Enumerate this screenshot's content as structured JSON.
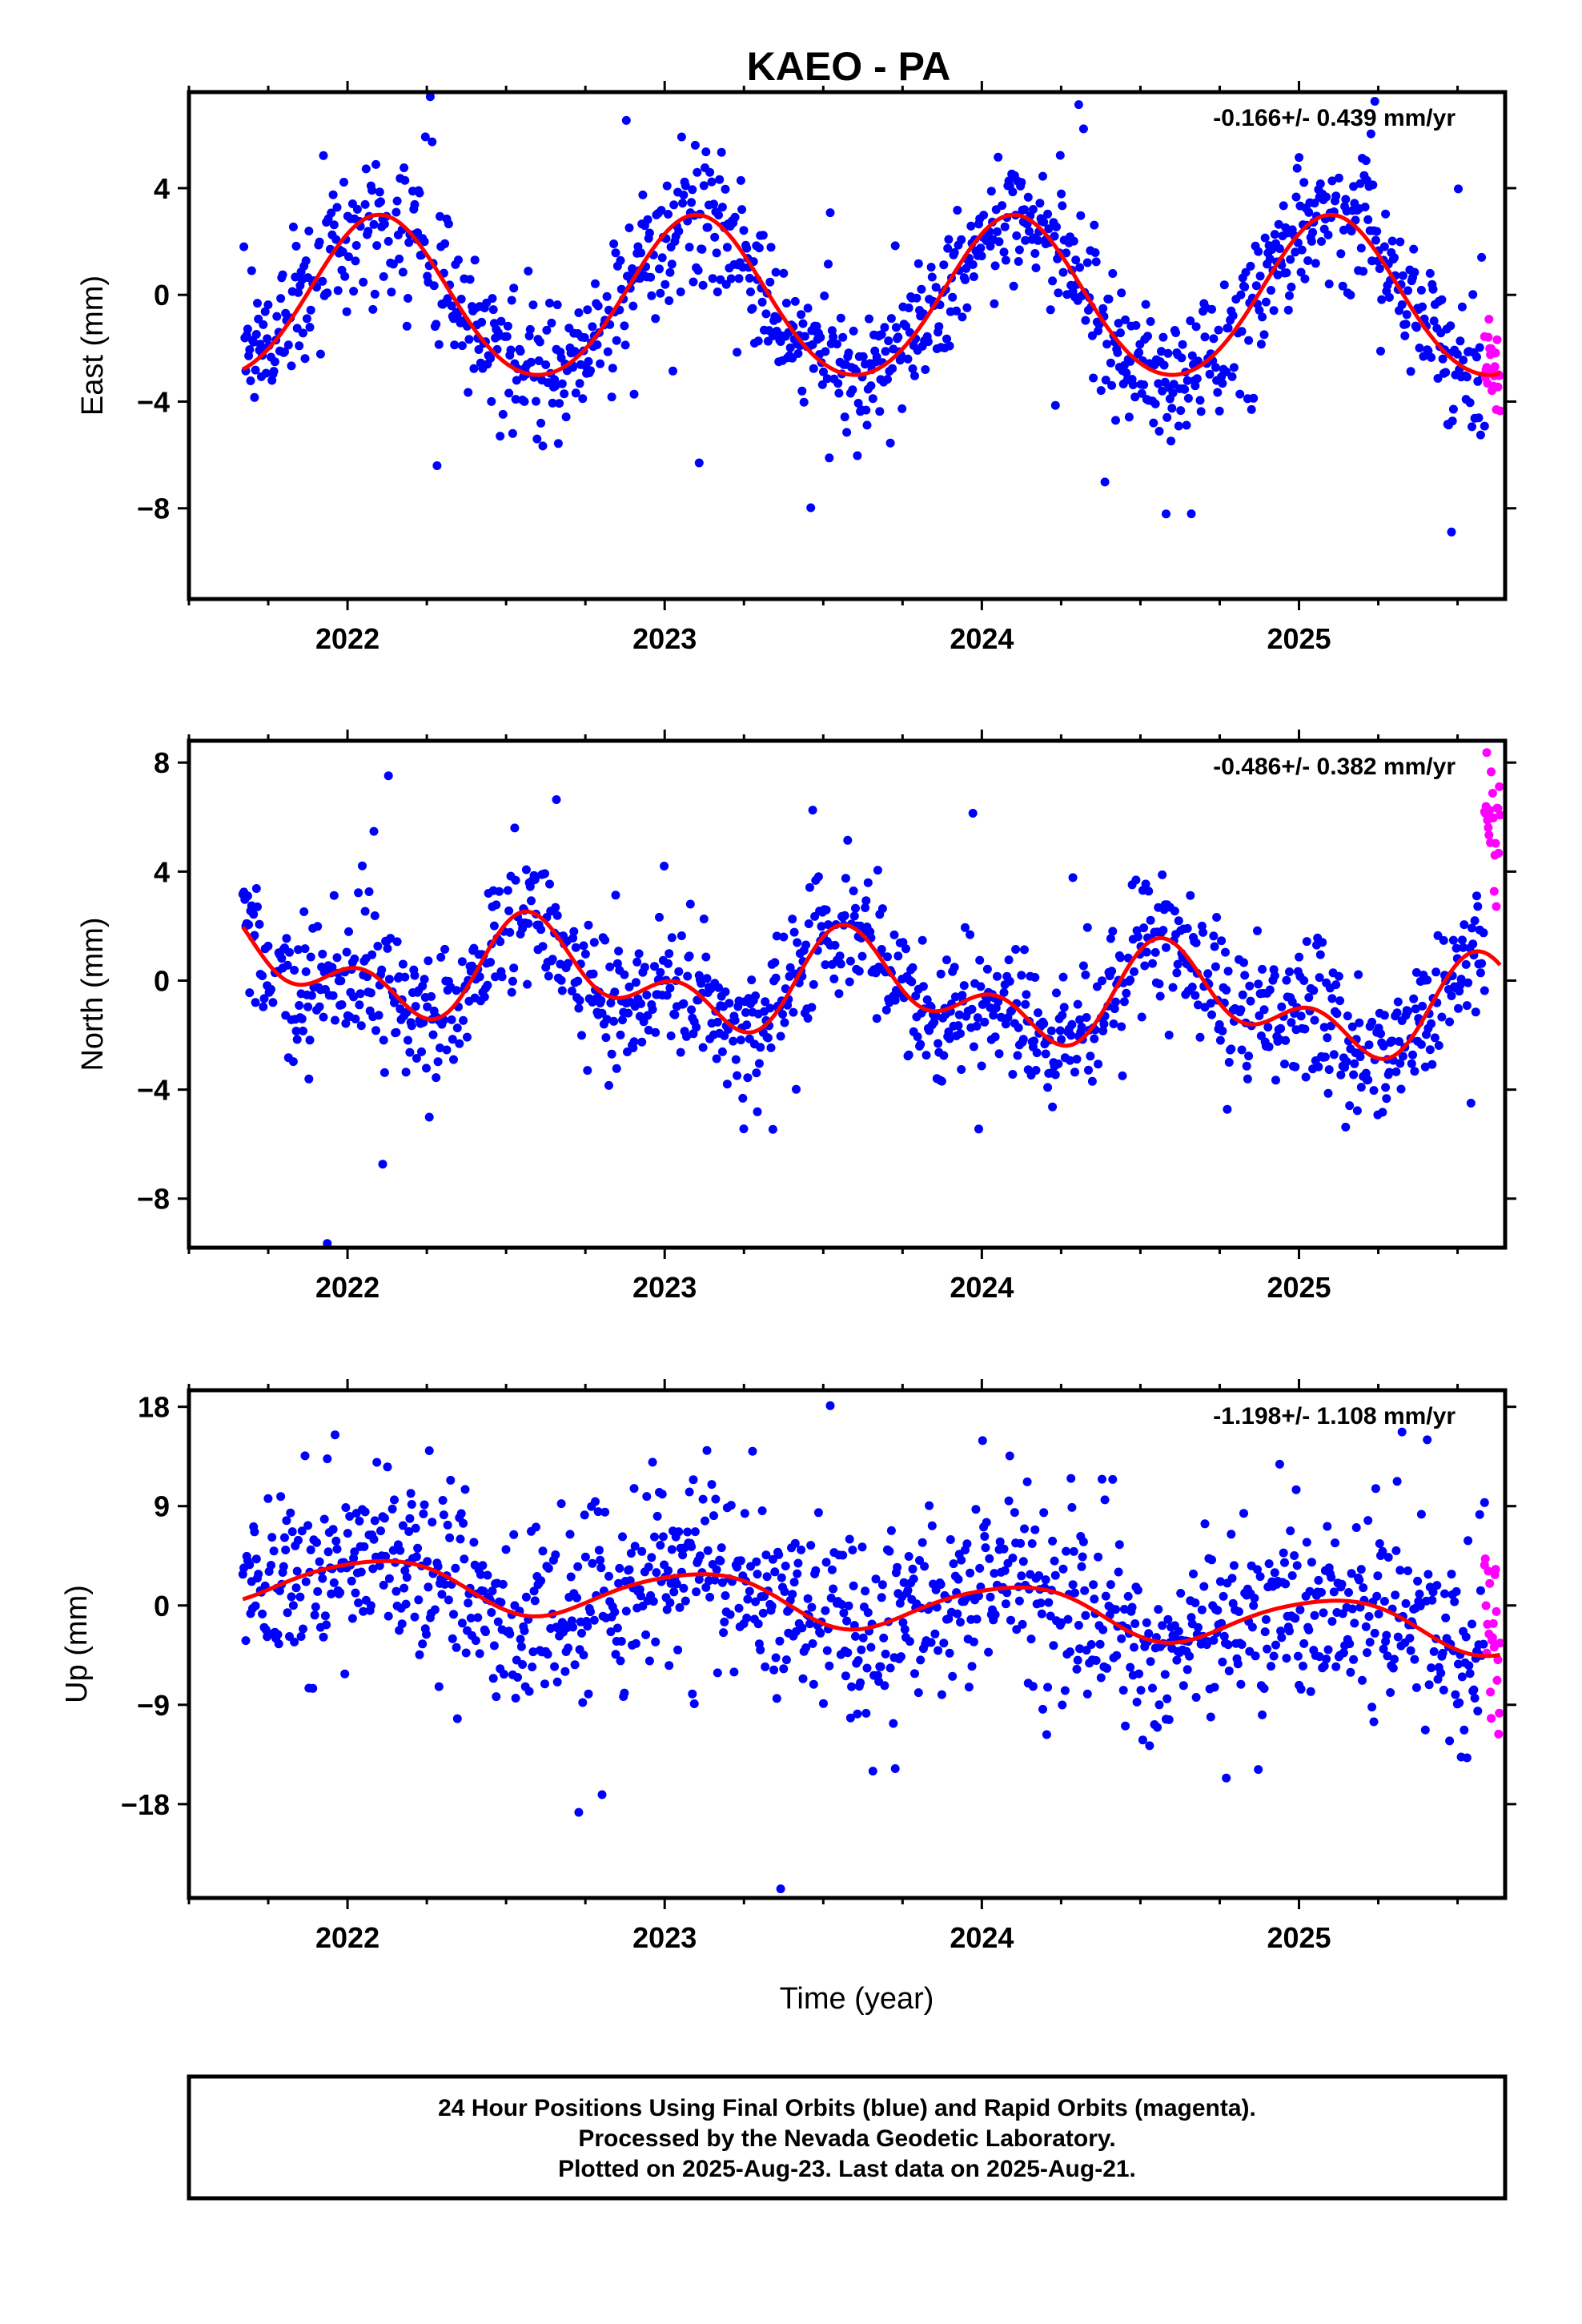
{
  "title": "KAEO - PA",
  "colors": {
    "final": "#0000ff",
    "rapid": "#ff00ff",
    "model": "#ff0000",
    "frame": "#000000"
  },
  "x_axis": {
    "label": "Time (year)",
    "ticks": [
      "2022",
      "2023",
      "2024",
      "2025"
    ]
  },
  "caption": [
    "24 Hour Positions Using Final Orbits (blue) and Rapid Orbits (magenta).",
    "Processed by the Nevada Geodetic Laboratory.",
    "Plotted on 2025-Aug-23. Last data on 2025-Aug-21."
  ],
  "chart_data": [
    {
      "type": "scatter",
      "id": "east",
      "ylabel": "East (mm)",
      "rate": "-0.166+/- 0.439 mm/yr",
      "xlim": [
        2021.5,
        2025.65
      ],
      "ylim": [
        -11.4,
        7.6
      ],
      "yticks": [
        4,
        0,
        -4,
        -8
      ],
      "ytick_labels": [
        "4",
        "0",
        "-4",
        "-8"
      ],
      "grid": false,
      "start": 2021.67,
      "end_final": 2025.585,
      "end_rapid": 2025.634,
      "model": {
        "offset": -0.2,
        "amplitude_annual": 3.0,
        "phase_annual": 0.1,
        "amplitude_semi": 0.2,
        "phase_semi": 0.6
      },
      "scatter": {
        "sigma": 1.2,
        "outlier_rate": 0.06,
        "outlier_scale": 3.5,
        "rapid_bias": 0.3,
        "rapid_sigma": 1.2,
        "points_final": 1280,
        "points_rapid": 22
      },
      "series": [
        {
          "name": "Final Orbits (blue)",
          "role": "final"
        },
        {
          "name": "Rapid Orbits (magenta)",
          "role": "rapid"
        },
        {
          "role": "model"
        }
      ]
    },
    {
      "type": "scatter",
      "id": "north",
      "ylabel": "North (mm)",
      "rate": "-0.486+/- 0.382 mm/yr",
      "xlim": [
        2021.5,
        2025.65
      ],
      "ylim": [
        -9.8,
        8.8
      ],
      "yticks": [
        8,
        4,
        0,
        -4,
        -8
      ],
      "ytick_labels": [
        "8",
        "4",
        "0",
        "-4",
        "-8"
      ],
      "grid": false,
      "start": 2021.67,
      "end_final": 2025.585,
      "end_rapid": 2025.634,
      "model": {
        "offset": -0.3,
        "amplitude_annual": 1.3,
        "phase_annual": 0.62,
        "amplitude_semi": 1.1,
        "phase_semi": 0.55,
        "rate": -0.486
      },
      "scatter": {
        "sigma": 1.2,
        "outlier_rate": 0.05,
        "outlier_scale": 3.5,
        "rapid_bias": 4.8,
        "rapid_sigma": 1.4,
        "points_final": 1280,
        "points_rapid": 22
      },
      "series": [
        {
          "name": "Final Orbits (blue)",
          "role": "final"
        },
        {
          "name": "Rapid Orbits (magenta)",
          "role": "rapid"
        },
        {
          "role": "model"
        }
      ]
    },
    {
      "type": "scatter",
      "id": "up",
      "ylabel": "Up (mm)",
      "rate": "-1.198+/- 1.108 mm/yr",
      "xlim": [
        2021.5,
        2025.65
      ],
      "ylim": [
        -26.5,
        19.5
      ],
      "yticks": [
        18,
        9,
        0,
        -9,
        -18
      ],
      "ytick_labels": [
        "18",
        "9",
        "0",
        "-9",
        "-18"
      ],
      "grid": false,
      "start": 2021.67,
      "end_final": 2025.585,
      "end_rapid": 2025.634,
      "model": {
        "offset": 0.2,
        "amplitude_annual": 2.2,
        "phase_annual": 0.1,
        "amplitude_semi": 0.3,
        "phase_semi": 0.3,
        "rate": -1.198
      },
      "scatter": {
        "sigma": 4.0,
        "outlier_rate": 0.06,
        "outlier_scale": 2.6,
        "rapid_bias": 0.5,
        "rapid_sigma": 5.5,
        "points_final": 1280,
        "points_rapid": 22
      },
      "series": [
        {
          "name": "Final Orbits (blue)",
          "role": "final"
        },
        {
          "name": "Rapid Orbits (magenta)",
          "role": "rapid"
        },
        {
          "role": "model"
        }
      ]
    }
  ]
}
